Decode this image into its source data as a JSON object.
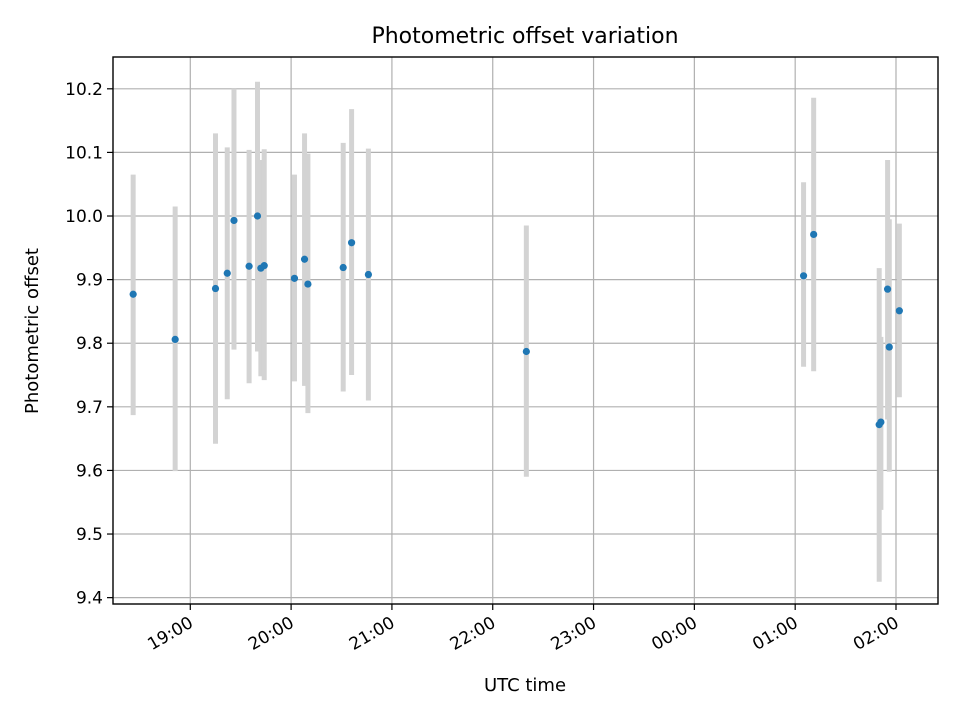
{
  "chart_data": {
    "type": "scatter",
    "title": "Photometric offset variation",
    "xlabel": "UTC time",
    "ylabel": "Photometric offset",
    "xlim": [
      "18:14",
      "02:25"
    ],
    "ylim": [
      9.39,
      10.25
    ],
    "x_ticks": [
      "19:00",
      "20:00",
      "21:00",
      "22:00",
      "23:00",
      "00:00",
      "01:00",
      "02:00"
    ],
    "y_ticks": [
      9.4,
      9.5,
      9.6,
      9.7,
      9.8,
      9.9,
      10.0,
      10.1,
      10.2
    ],
    "y_tick_labels": [
      "9.4",
      "9.5",
      "9.6",
      "9.7",
      "9.8",
      "9.9",
      "10.0",
      "10.1",
      "10.2"
    ],
    "grid": true,
    "marker_color": "#1f77b4",
    "errorbar_color": "#d3d3d3",
    "points": [
      {
        "x": "18:26",
        "y": 9.877,
        "ylow": 9.687,
        "yhigh": 10.065
      },
      {
        "x": "18:51",
        "y": 9.806,
        "ylow": 9.599,
        "yhigh": 10.015
      },
      {
        "x": "19:15",
        "y": 9.886,
        "ylow": 9.642,
        "yhigh": 10.13
      },
      {
        "x": "19:22",
        "y": 9.91,
        "ylow": 9.712,
        "yhigh": 10.108
      },
      {
        "x": "19:26",
        "y": 9.993,
        "ylow": 9.79,
        "yhigh": 10.2
      },
      {
        "x": "19:35",
        "y": 9.921,
        "ylow": 9.737,
        "yhigh": 10.104
      },
      {
        "x": "19:40",
        "y": 10.0,
        "ylow": 9.787,
        "yhigh": 10.211
      },
      {
        "x": "19:42",
        "y": 9.918,
        "ylow": 9.748,
        "yhigh": 10.088
      },
      {
        "x": "19:44",
        "y": 9.922,
        "ylow": 9.742,
        "yhigh": 10.105
      },
      {
        "x": "20:02",
        "y": 9.902,
        "ylow": 9.74,
        "yhigh": 10.065
      },
      {
        "x": "20:08",
        "y": 9.932,
        "ylow": 9.733,
        "yhigh": 10.13
      },
      {
        "x": "20:10",
        "y": 9.893,
        "ylow": 9.69,
        "yhigh": 10.098
      },
      {
        "x": "20:31",
        "y": 9.919,
        "ylow": 9.724,
        "yhigh": 10.115
      },
      {
        "x": "20:36",
        "y": 9.958,
        "ylow": 9.75,
        "yhigh": 10.168
      },
      {
        "x": "20:46",
        "y": 9.908,
        "ylow": 9.71,
        "yhigh": 10.106
      },
      {
        "x": "22:20",
        "y": 9.787,
        "ylow": 9.59,
        "yhigh": 9.985
      },
      {
        "x": "01:05",
        "y": 9.906,
        "ylow": 9.763,
        "yhigh": 10.053
      },
      {
        "x": "01:11",
        "y": 9.971,
        "ylow": 9.756,
        "yhigh": 10.186
      },
      {
        "x": "01:50",
        "y": 9.672,
        "ylow": 9.425,
        "yhigh": 9.918
      },
      {
        "x": "01:51",
        "y": 9.676,
        "ylow": 9.538,
        "yhigh": 9.81
      },
      {
        "x": "01:55",
        "y": 9.885,
        "ylow": 9.68,
        "yhigh": 10.088
      },
      {
        "x": "01:56",
        "y": 9.794,
        "ylow": 9.598,
        "yhigh": 9.995
      },
      {
        "x": "02:02",
        "y": 9.851,
        "ylow": 9.715,
        "yhigh": 9.988
      }
    ]
  }
}
